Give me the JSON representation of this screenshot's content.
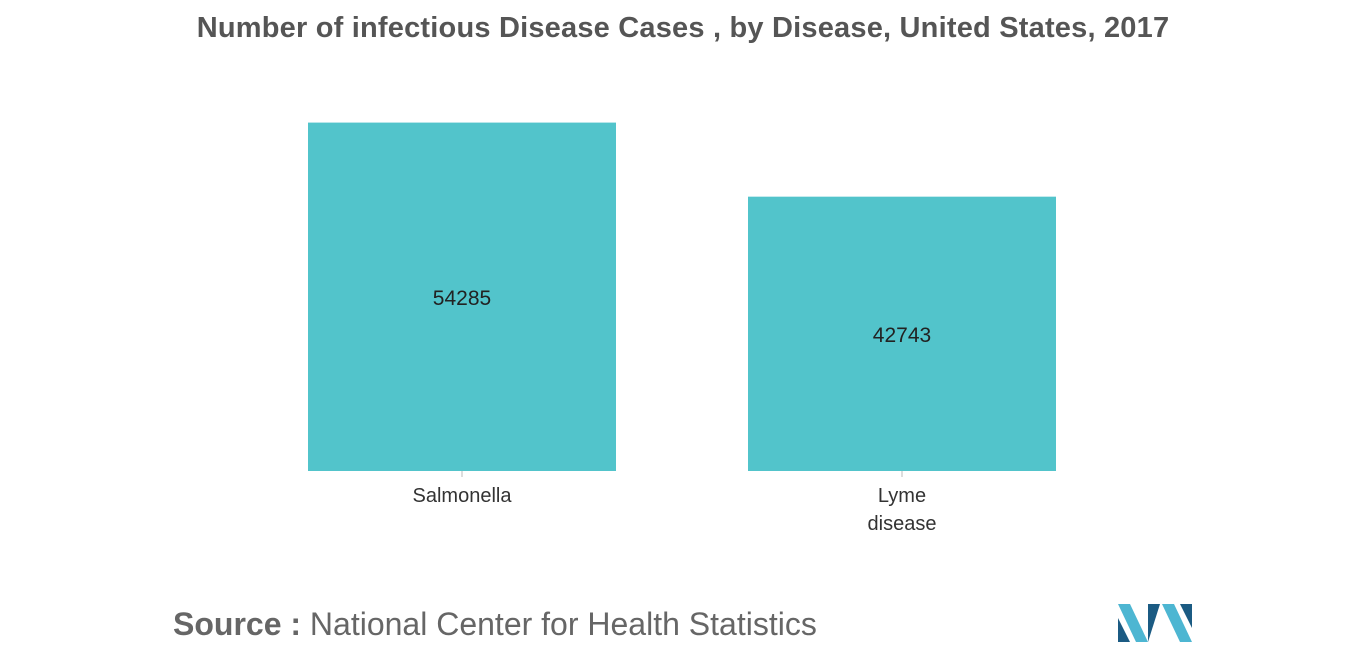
{
  "chart_data": {
    "type": "bar",
    "title": "Number of infectious Disease Cases , by Disease, United States, 2017",
    "categories": [
      [
        "Salmonella"
      ],
      [
        "Lyme",
        "disease"
      ]
    ],
    "values": [
      54285,
      42743
    ],
    "value_labels": [
      "54285",
      "42743"
    ],
    "ylim": [
      0,
      55000
    ],
    "grid": false,
    "legend": "none",
    "bar_color": "#52C4CB"
  },
  "footer": {
    "source_label": "Source :",
    "source_text": "National Center for Health Statistics"
  },
  "colors": {
    "title": "#555555",
    "text": "#333333",
    "logo_dark": "#1B5B83",
    "logo_light": "#4DB6D2"
  }
}
